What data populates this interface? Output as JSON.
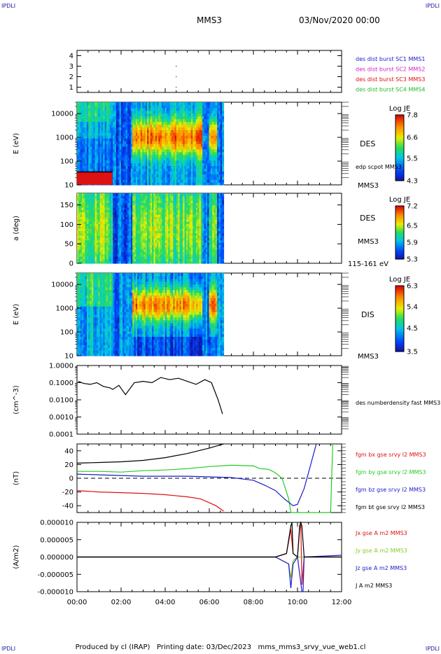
{
  "corner_labels": [
    "IPDLI",
    "IPDLI",
    "IPDLI",
    "IPDLI"
  ],
  "header": {
    "spacecraft": "MMS3",
    "datetime": "03/Nov/2020 00:00"
  },
  "footer": {
    "credit": "Produced by cl (IRAP)",
    "printing": "Printing date: 03/Dec/2023",
    "filename": "mms_mms3_srvy_vue_web1.cl"
  },
  "time_axis": {
    "range_hours": [
      0,
      12
    ],
    "tick_labels": [
      "00:00",
      "02:00",
      "04:00",
      "06:00",
      "08:00",
      "10:00",
      "12:00"
    ]
  },
  "chart_data": [
    {
      "type": "scatter",
      "panel": "burst availability",
      "ylim": [
        0.5,
        4.5
      ],
      "y_tick_labels": [
        "1",
        "2",
        "3",
        "4"
      ],
      "legend": [
        {
          "name": "des dist burst SC1 MMS1",
          "color": "#1a1acc"
        },
        {
          "name": "des dist burst SC2 MMS2",
          "color": "#cc22cc"
        },
        {
          "name": "des dist burst SC3 MMS3",
          "color": "#dd1111"
        },
        {
          "name": "des dist burst SC4 MMS4",
          "color": "#22bb22"
        }
      ],
      "points": [
        {
          "t": 4.5,
          "y": 3
        },
        {
          "t": 4.5,
          "y": 2
        },
        {
          "t": 4.5,
          "y": 1
        }
      ]
    },
    {
      "type": "heatmap",
      "panel": "DES omni energy spectrogram",
      "ylabel": "E (eV)",
      "y_scale": "log",
      "ylim": [
        10,
        30000
      ],
      "y_tick_labels": [
        "10",
        "100",
        "1000",
        "10000"
      ],
      "right_label": "DES",
      "overlay_label": "edp scpot MMS3",
      "sublabel": "MMS3",
      "colorbar": {
        "title": "Log JE",
        "range": [
          4.3,
          7.8
        ],
        "tick_labels": [
          "4.3",
          "5.5",
          "6.6",
          "7.8"
        ]
      },
      "data_coverage_hours": [
        0,
        6.65
      ],
      "scpot_overlay_hours": [
        0,
        1.6
      ],
      "scpot_level_eV": 35
    },
    {
      "type": "heatmap",
      "panel": "DES pitch angle",
      "ylabel": "a (deg)",
      "ylim": [
        0,
        180
      ],
      "y_tick_labels": [
        "0",
        "50",
        "100",
        "150"
      ],
      "right_label": "DES",
      "sublabel": "MMS3",
      "energy_band": "115-161 eV",
      "colorbar": {
        "title": "Log JE",
        "range": [
          5.3,
          7.2
        ],
        "tick_labels": [
          "5.3",
          "5.9",
          "6.5",
          "7.2"
        ]
      },
      "data_coverage_hours": [
        0,
        6.65
      ]
    },
    {
      "type": "heatmap",
      "panel": "DIS omni energy spectrogram",
      "ylabel": "E (eV)",
      "y_scale": "log",
      "ylim": [
        10,
        30000
      ],
      "y_tick_labels": [
        "10",
        "100",
        "1000",
        "10000"
      ],
      "right_label": "DIS",
      "sublabel": "MMS3",
      "colorbar": {
        "title": "Log JE",
        "range": [
          3.5,
          6.3
        ],
        "tick_labels": [
          "3.5",
          "4.5",
          "5.4",
          "6.3"
        ]
      },
      "data_coverage_hours": [
        0,
        6.65
      ]
    },
    {
      "type": "line",
      "panel": "electron density",
      "ylabel": "(cm^-3)",
      "y_scale": "log",
      "ylim": [
        0.0001,
        1.0
      ],
      "y_tick_labels": [
        "0.0001",
        "0.0010",
        "0.0100",
        "0.1000",
        "1.0000"
      ],
      "series": [
        {
          "name": "des numberdensity fast MMS3",
          "color": "#000000",
          "t": [
            0.05,
            0.3,
            0.6,
            0.9,
            1.2,
            1.5,
            1.62,
            1.9,
            2.2,
            2.6,
            3.0,
            3.4,
            3.8,
            4.2,
            4.6,
            5.0,
            5.4,
            5.8,
            6.1,
            6.4,
            6.6
          ],
          "values": [
            0.12,
            0.09,
            0.08,
            0.1,
            0.06,
            0.05,
            0.04,
            0.07,
            0.02,
            0.1,
            0.12,
            0.1,
            0.2,
            0.15,
            0.18,
            0.12,
            0.08,
            0.15,
            0.1,
            0.01,
            0.0015
          ]
        }
      ]
    },
    {
      "type": "line",
      "panel": "magnetic field",
      "ylabel": "(nT)",
      "ylim": [
        -50,
        50
      ],
      "y_tick_labels": [
        "-40",
        "-20",
        "0",
        "20",
        "40"
      ],
      "zero_line": true,
      "series": [
        {
          "name": "fgm bx gse srvy l2 MMS3",
          "color": "#dd1111",
          "t": [
            0,
            1,
            2,
            3,
            4,
            5,
            5.6,
            6.3,
            6.65
          ],
          "values": [
            -18,
            -20,
            -21,
            -22,
            -24,
            -27,
            -30,
            -40,
            -48
          ]
        },
        {
          "name": "fgm by gse srvy l2 MMS3",
          "color": "#22cc22",
          "t": [
            0,
            1,
            2,
            3,
            4,
            5,
            6,
            7,
            8,
            8.3,
            8.7,
            9.0,
            9.3,
            9.6,
            9.7,
            11.5,
            11.55,
            11.6
          ],
          "values": [
            10,
            10,
            9,
            11,
            12,
            14,
            17,
            19,
            18,
            14,
            13,
            8,
            0,
            -30,
            -50,
            -50,
            0,
            50
          ]
        },
        {
          "name": "fgm bz gse srvy l2 MMS3",
          "color": "#1a1acc",
          "t": [
            0,
            1,
            2,
            3,
            4,
            5,
            6,
            7,
            8,
            8.5,
            9.0,
            9.4,
            9.8,
            10.0,
            10.3,
            10.6,
            10.85
          ],
          "values": [
            6,
            5,
            4,
            3,
            3,
            3,
            2,
            1,
            -3,
            -10,
            -18,
            -30,
            -40,
            -38,
            -15,
            20,
            50
          ]
        },
        {
          "name": "fgm bt gse srvy l2 MMS3",
          "color": "#000000",
          "t": [
            0,
            1,
            2,
            3,
            4,
            5,
            6,
            6.65
          ],
          "values": [
            22,
            23,
            24,
            26,
            30,
            36,
            44,
            50
          ]
        }
      ]
    },
    {
      "type": "line",
      "panel": "current density",
      "ylabel": "(A/m2)",
      "ylim": [
        -1e-05,
        1e-05
      ],
      "y_tick_labels": [
        "-0.000010",
        "-0.000005",
        "0.000000",
        "0.000005",
        "0.000010"
      ],
      "series": [
        {
          "name": "Jx gse A m2 MMS3",
          "color": "#dd1111",
          "t": [
            0,
            9.0,
            9.5,
            9.7,
            9.8,
            10.0,
            10.1,
            10.15,
            10.2,
            10.3,
            12.0
          ],
          "values": [
            0,
            0,
            1e-06,
            8e-06,
            1e-06,
            0,
            8e-06,
            1e-05,
            -8e-06,
            0,
            0
          ]
        },
        {
          "name": "Jy gse A m2 MMS3",
          "color": "#88cc22",
          "t": [
            0,
            9.0,
            9.6,
            9.7,
            9.8,
            10.0,
            12.0
          ],
          "values": [
            0,
            0,
            -2e-06,
            -6e-06,
            -1e-06,
            0,
            0
          ]
        },
        {
          "name": "Jz gse A m2 MMS3",
          "color": "#1a1acc",
          "t": [
            0,
            9.0,
            9.6,
            9.7,
            9.8,
            10.0,
            10.2,
            10.25,
            10.3,
            12.0
          ],
          "values": [
            0,
            0,
            -2e-06,
            -9e-06,
            -2e-06,
            0,
            -1e-05,
            -1e-05,
            0,
            5e-07
          ]
        },
        {
          "name": "J A m2 MMS3",
          "color": "#000000",
          "t": [
            0,
            9.0,
            9.5,
            9.7,
            9.75,
            9.8,
            10.0,
            10.1,
            10.15,
            10.2,
            10.3,
            12.0
          ],
          "values": [
            0,
            0,
            1e-06,
            9e-06,
            1e-05,
            1e-06,
            0,
            9e-06,
            1e-05,
            9e-06,
            0,
            0
          ]
        }
      ]
    }
  ]
}
